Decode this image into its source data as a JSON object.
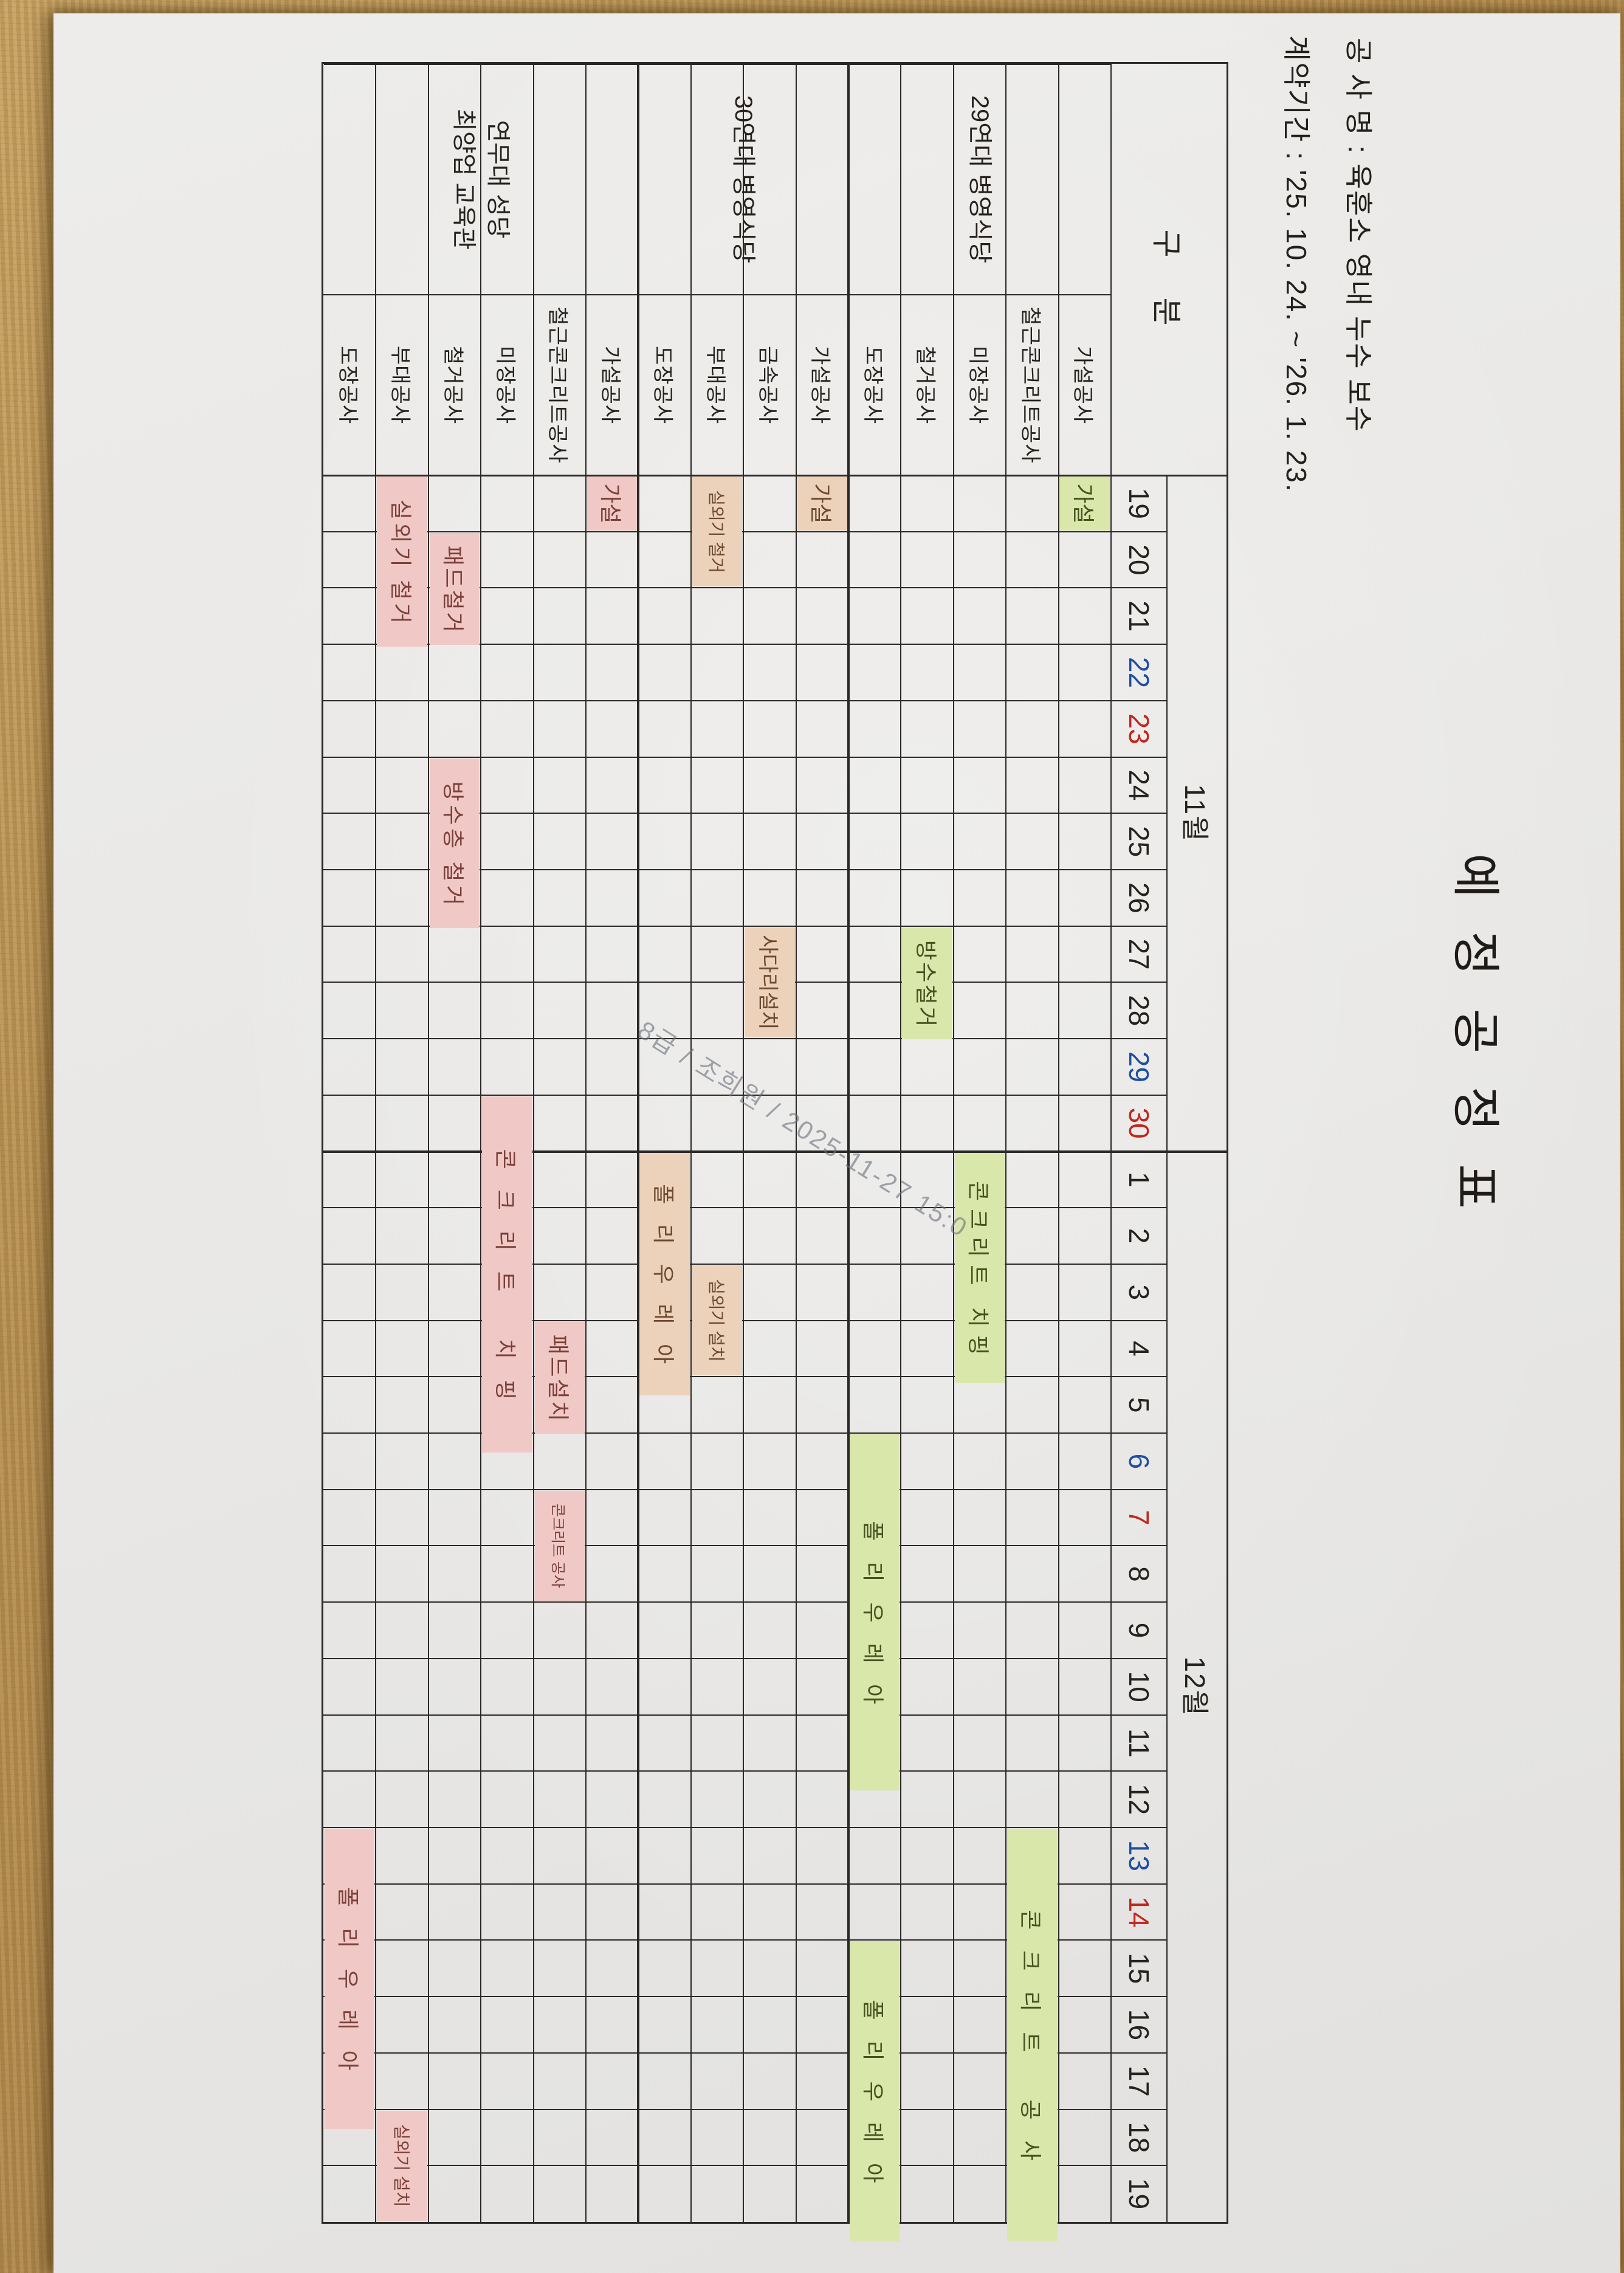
{
  "header": {
    "project_line": "공 사 명 : 육훈소 영내 누수 보수",
    "contract_line": "계약기간 : '25. 10. 24. ~ '26. 1. 23."
  },
  "title": "예 정 공 정 표",
  "watermark": "8급 / 조희원 / 2025-11-27 15:0",
  "schedule": {
    "corner_label": "구 분",
    "months": [
      {
        "label": "11월",
        "days": 12
      },
      {
        "label": "12월",
        "days": 19
      }
    ],
    "dates": [
      {
        "day": 19,
        "type": "normal"
      },
      {
        "day": 20,
        "type": "normal"
      },
      {
        "day": 21,
        "type": "normal"
      },
      {
        "day": 22,
        "type": "sat"
      },
      {
        "day": 23,
        "type": "sun"
      },
      {
        "day": 24,
        "type": "normal"
      },
      {
        "day": 25,
        "type": "normal"
      },
      {
        "day": 26,
        "type": "normal"
      },
      {
        "day": 27,
        "type": "normal"
      },
      {
        "day": 28,
        "type": "normal"
      },
      {
        "day": 29,
        "type": "sat"
      },
      {
        "day": 30,
        "type": "sun"
      },
      {
        "day": 1,
        "type": "normal"
      },
      {
        "day": 2,
        "type": "normal"
      },
      {
        "day": 3,
        "type": "normal"
      },
      {
        "day": 4,
        "type": "normal"
      },
      {
        "day": 5,
        "type": "normal"
      },
      {
        "day": 6,
        "type": "sat"
      },
      {
        "day": 7,
        "type": "sun"
      },
      {
        "day": 8,
        "type": "normal"
      },
      {
        "day": 9,
        "type": "normal"
      },
      {
        "day": 10,
        "type": "normal"
      },
      {
        "day": 11,
        "type": "normal"
      },
      {
        "day": 12,
        "type": "normal"
      },
      {
        "day": 13,
        "type": "sat"
      },
      {
        "day": 14,
        "type": "sun"
      },
      {
        "day": 15,
        "type": "normal"
      },
      {
        "day": 16,
        "type": "normal"
      },
      {
        "day": 17,
        "type": "normal"
      },
      {
        "day": 18,
        "type": "normal"
      },
      {
        "day": 19,
        "type": "normal"
      }
    ],
    "weekend_colors": {
      "sat": "#1d4fa0",
      "sun": "#c0281e"
    },
    "groups": [
      {
        "name_lines": [
          "29연대 병영식당"
        ],
        "bar_color": "#d9e7ab",
        "bar_text_color": "#46521f",
        "rows": [
          {
            "work": "가설공사",
            "bars": [
              {
                "label": "가설",
                "start": 1,
                "end": 1
              }
            ]
          },
          {
            "work": "철근콘크리트공사",
            "bars": [
              {
                "label": "콘크리트 공사",
                "start": 25,
                "end": 31
              }
            ]
          },
          {
            "work": "미장공사",
            "bars": [
              {
                "label": "콘크리트 치핑",
                "start": 13,
                "end": 16
              }
            ]
          },
          {
            "work": "철거공사",
            "bars": [
              {
                "label": "방수철거",
                "start": 9,
                "end": 10
              }
            ]
          },
          {
            "work": "도장공사",
            "bars": [
              {
                "label": "폴리우레아",
                "start": 18,
                "end": 23
              },
              {
                "label": "폴리우레아",
                "start": 27,
                "end": 31
              }
            ]
          }
        ]
      },
      {
        "name_lines": [
          "30연대 병영식당"
        ],
        "bar_color": "#ecd2ba",
        "bar_text_color": "#6d4a30",
        "rows": [
          {
            "work": "가설공사",
            "bars": [
              {
                "label": "가설",
                "start": 1,
                "end": 1
              }
            ]
          },
          {
            "work": "금속공사",
            "bars": [
              {
                "label": "사다리설치",
                "start": 9,
                "end": 10
              }
            ]
          },
          {
            "work": "부대공사",
            "bars": [
              {
                "label": "실외기 철거",
                "start": 1,
                "end": 2
              },
              {
                "label": "실외기 설치",
                "start": 15,
                "end": 16
              }
            ]
          },
          {
            "work": "도장공사",
            "bars": [
              {
                "label": "폴리우레아",
                "start": 13,
                "end": 16
              }
            ]
          }
        ]
      },
      {
        "name_lines": [
          "연무대 성당",
          "최양업 교육관"
        ],
        "bar_color": "#f0c9c6",
        "bar_text_color": "#7c403a",
        "rows": [
          {
            "work": "가설공사",
            "bars": [
              {
                "label": "가설",
                "start": 1,
                "end": 1
              }
            ]
          },
          {
            "work": "철근콘크리트공사",
            "bars": [
              {
                "label": "패드설치",
                "start": 16,
                "end": 17
              },
              {
                "label": "콘크리트 공사",
                "start": 19,
                "end": 20
              }
            ]
          },
          {
            "work": "미장공사",
            "bars": [
              {
                "label": "콘크리트 치핑",
                "start": 12,
                "end": 17
              }
            ]
          },
          {
            "work": "철거공사",
            "bars": [
              {
                "label": "패드철거",
                "start": 2,
                "end": 3
              },
              {
                "label": "방수층 철거",
                "start": 6,
                "end": 8
              }
            ]
          },
          {
            "work": "부대공사",
            "bars": [
              {
                "label": "실외기 철거",
                "start": 1,
                "end": 3
              },
              {
                "label": "실외기 설치",
                "start": 30,
                "end": 31
              }
            ]
          },
          {
            "work": "도장공사",
            "bars": [
              {
                "label": "폴리우레아",
                "start": 25,
                "end": 29
              }
            ]
          }
        ]
      }
    ]
  }
}
